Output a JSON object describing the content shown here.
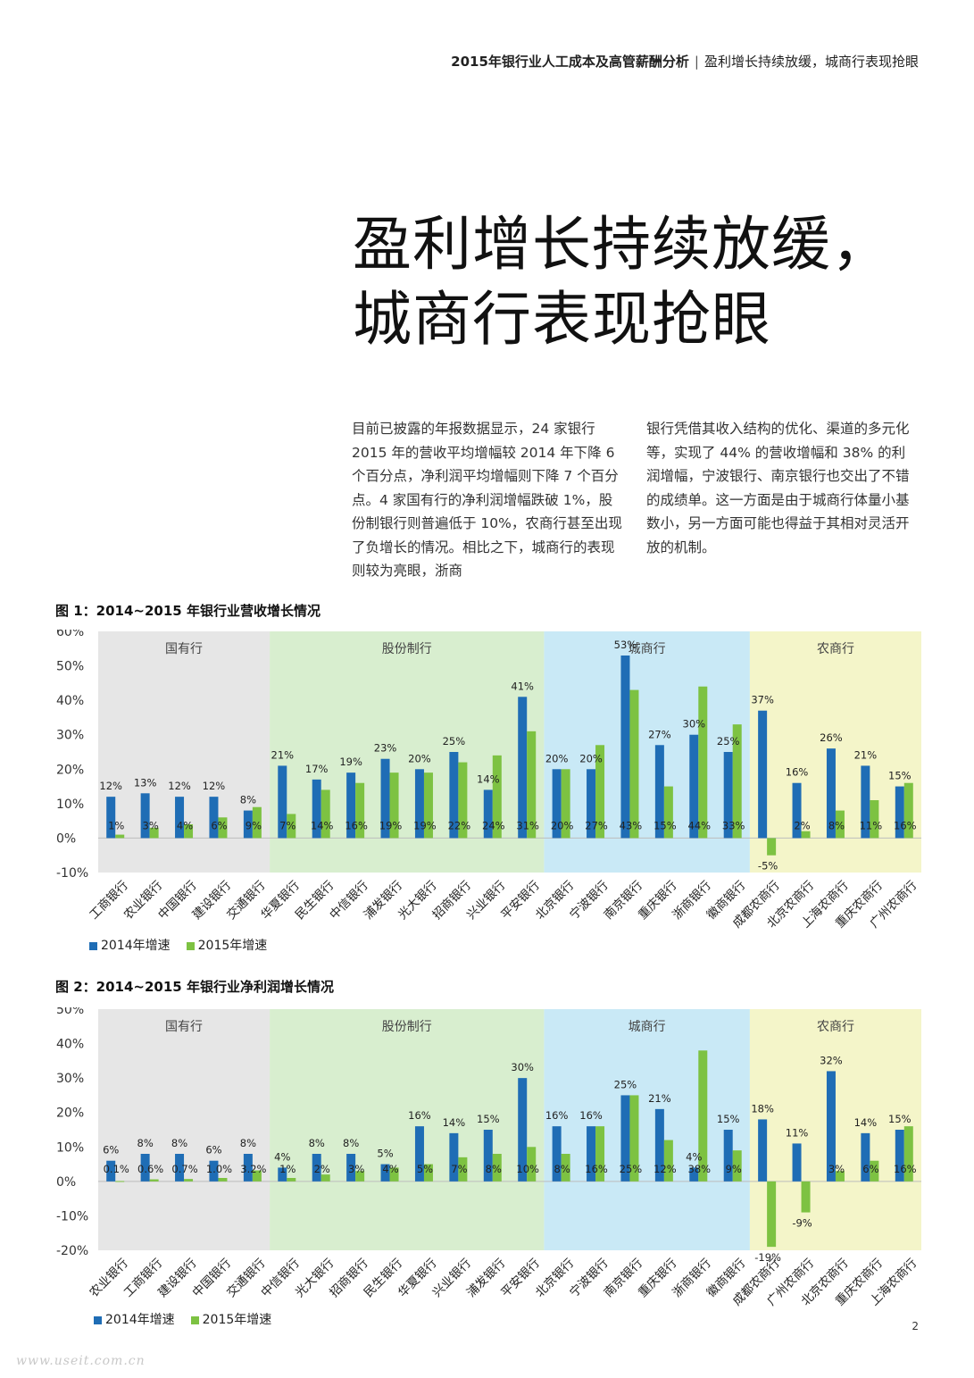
{
  "header": {
    "report": "2015年银行业人工成本及高管薪酬分析",
    "separator": "|",
    "section": "盈利增长持续放缓，城商行表现抢眼"
  },
  "title": {
    "line1": "盈利增长持续放缓，",
    "line2": "城商行表现抢眼"
  },
  "body": {
    "col1": "目前已披露的年报数据显示，24 家银行 2015 年的营收平均增幅较 2014 年下降 6 个百分点，净利润平均增幅则下降 7 个百分点。4 家国有行的净利润增幅跌破 1%，股份制银行则普遍低于 10%，农商行甚至出现了负增长的情况。相比之下，城商行的表现则较为亮眼，浙商",
    "col2": "银行凭借其收入结构的优化、渠道的多元化等，实现了 44% 的营收增幅和 38% 的利润增幅，宁波银行、南京银行也交出了不错的成绩单。这一方面是由于城商行体量小基数小，另一方面可能也得益于其相对灵活开放的机制。"
  },
  "colors": {
    "series2014": "#1f6db5",
    "series2015": "#7dc242",
    "bg_state": "#e6e6e6",
    "bg_joint": "#d8eecf",
    "bg_city": "#c9e9f6",
    "bg_rural": "#f4f5c9"
  },
  "page_number": "2",
  "watermark": "www.useit.com.cn",
  "chart_data": [
    {
      "type": "bar",
      "title": "图 1：2014~2015 年银行业营收增长情况",
      "ylim": [
        -10,
        60
      ],
      "yticks": [
        "-10%",
        "0%",
        "10%",
        "20%",
        "30%",
        "40%",
        "50%",
        "60%"
      ],
      "groups": [
        {
          "name": "国有行",
          "count": 5
        },
        {
          "name": "股份制行",
          "count": 8
        },
        {
          "name": "城商行",
          "count": 6
        },
        {
          "name": "农商行",
          "count": 5
        }
      ],
      "categories": [
        "工商银行",
        "农业银行",
        "中国银行",
        "建设银行",
        "交通银行",
        "华夏银行",
        "民生银行",
        "中信银行",
        "浦发银行",
        "光大银行",
        "招商银行",
        "兴业银行",
        "平安银行",
        "北京银行",
        "宁波银行",
        "南京银行",
        "重庆银行",
        "浙商银行",
        "徽商银行",
        "成都农商行",
        "北京农商行",
        "上海农商行",
        "重庆农商行",
        "广州农商行"
      ],
      "series": [
        {
          "name": "2014年增速",
          "values": [
            12,
            13,
            12,
            12,
            8,
            21,
            17,
            19,
            23,
            20,
            25,
            14,
            41,
            20,
            20,
            53,
            27,
            30,
            25,
            37,
            16,
            26,
            21,
            15
          ],
          "labels": [
            "12%",
            "13%",
            "12%",
            "12%",
            "8%",
            "21%",
            "17%",
            "19%",
            "23%",
            "20%",
            "25%",
            "14%",
            "41%",
            "20%",
            "20%",
            "53%",
            "27%",
            "30%",
            "25%",
            "37%",
            "16%",
            "26%",
            "21%",
            "15%"
          ]
        },
        {
          "name": "2015年增速",
          "values": [
            1,
            3,
            4,
            6,
            9,
            7,
            14,
            16,
            19,
            19,
            22,
            24,
            31,
            20,
            27,
            43,
            15,
            44,
            33,
            -5,
            2,
            8,
            11,
            16
          ],
          "labels": [
            "1%",
            "3%",
            "4%",
            "6%",
            "9%",
            "7%",
            "14%",
            "16%",
            "19%",
            "19%",
            "22%",
            "24%",
            "31%",
            "20%",
            "27%",
            "43%",
            "15%",
            "44%",
            "33%",
            "-5%",
            "2%",
            "8%",
            "11%",
            "16%"
          ]
        }
      ],
      "legend": [
        "2014年增速",
        "2015年增速"
      ]
    },
    {
      "type": "bar",
      "title": "图 2：2014~2015 年银行业净利润增长情况",
      "ylim": [
        -20,
        50
      ],
      "yticks": [
        "-20%",
        "-10%",
        "0%",
        "10%",
        "20%",
        "30%",
        "40%",
        "50%"
      ],
      "groups": [
        {
          "name": "国有行",
          "count": 5
        },
        {
          "name": "股份制行",
          "count": 8
        },
        {
          "name": "城商行",
          "count": 6
        },
        {
          "name": "农商行",
          "count": 5
        }
      ],
      "categories": [
        "农业银行",
        "工商银行",
        "建设银行",
        "中国银行",
        "交通银行",
        "中信银行",
        "光大银行",
        "招商银行",
        "民生银行",
        "华夏银行",
        "兴业银行",
        "浦发银行",
        "平安银行",
        "北京银行",
        "宁波银行",
        "南京银行",
        "重庆银行",
        "浙商银行",
        "徽商银行",
        "成都农商行",
        "广州农商行",
        "北京农商行",
        "重庆农商行",
        "上海农商行"
      ],
      "series": [
        {
          "name": "2014年增速",
          "values": [
            6,
            8,
            8,
            6,
            8,
            4,
            8,
            8,
            5,
            16,
            14,
            15,
            30,
            16,
            16,
            25,
            21,
            4,
            15,
            18,
            11,
            32,
            14,
            15
          ],
          "labels": [
            "6%",
            "8%",
            "8%",
            "6%",
            "8%",
            "4%",
            "8%",
            "8%",
            "5%",
            "16%",
            "14%",
            "15%",
            "30%",
            "16%",
            "16%",
            "25%",
            "21%",
            "4%",
            "15%",
            "18%",
            "11%",
            "32%",
            "14%",
            "15%"
          ]
        },
        {
          "name": "2015年增速",
          "values": [
            0.1,
            0.6,
            0.7,
            1.0,
            3.2,
            1,
            2,
            3,
            4,
            5,
            7,
            8,
            10,
            8,
            16,
            25,
            12,
            38,
            9,
            -19,
            -9,
            3,
            6,
            16
          ],
          "labels": [
            "0.1%",
            "0.6%",
            "0.7%",
            "1.0%",
            "3.2%",
            "1%",
            "2%",
            "3%",
            "4%",
            "5%",
            "7%",
            "8%",
            "10%",
            "8%",
            "16%",
            "25%",
            "12%",
            "38%",
            "9%",
            "-19%",
            "-9%",
            "3%",
            "6%",
            "16%"
          ]
        }
      ],
      "legend": [
        "2014年增速",
        "2015年增速"
      ]
    }
  ]
}
